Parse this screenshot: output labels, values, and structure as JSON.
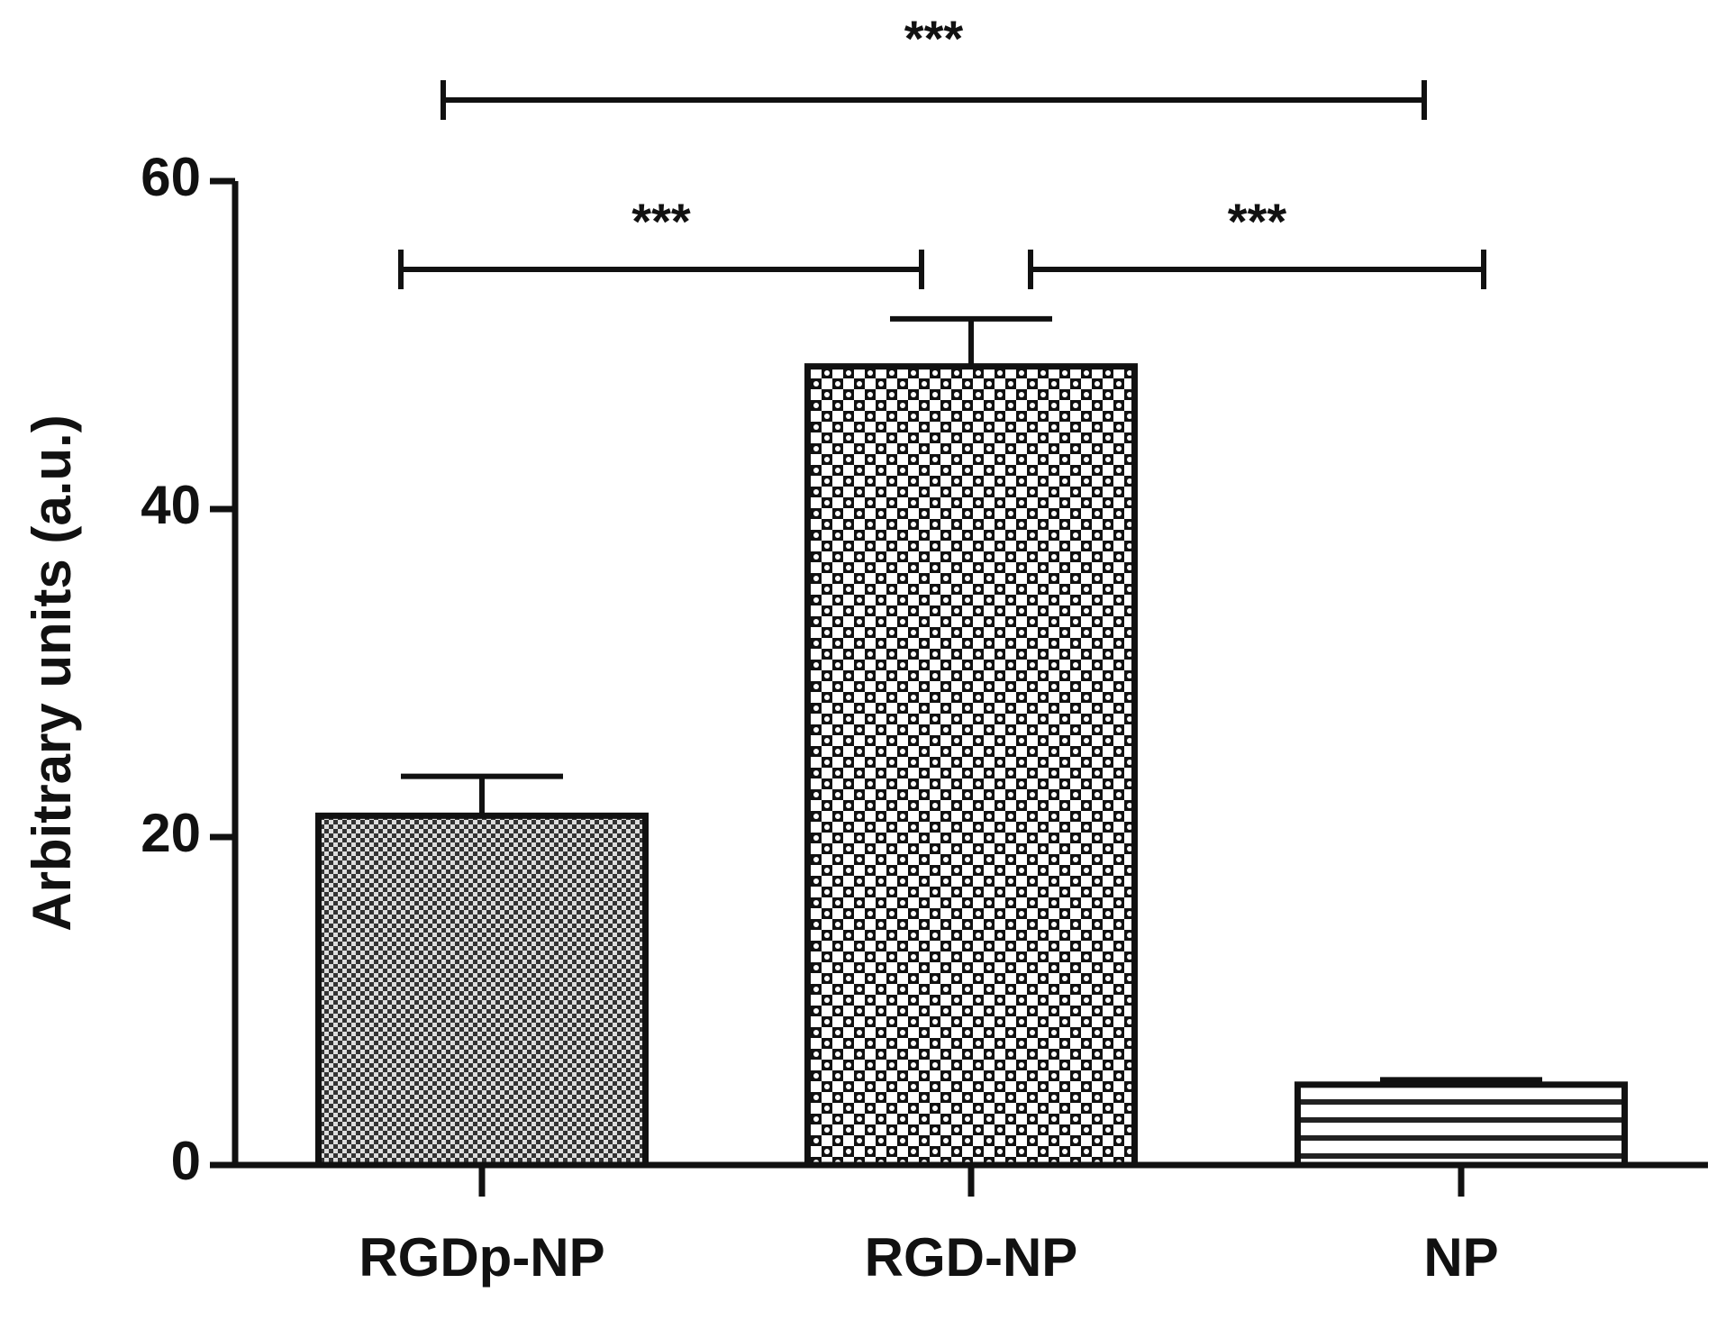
{
  "chart_data": {
    "type": "bar",
    "y_label": "Arbitrary units (a.u.)",
    "categories": [
      "RGDp-NP",
      "RGD-NP",
      "NP"
    ],
    "values": [
      21.3,
      48.7,
      4.9
    ],
    "errors": [
      2.4,
      2.9,
      0.3
    ],
    "ylim": [
      0,
      60
    ],
    "yticks": [
      0,
      20,
      40,
      60
    ],
    "comparisons": [
      {
        "from": 0,
        "to": 1,
        "label": "***"
      },
      {
        "from": 1,
        "to": 2,
        "label": "***"
      },
      {
        "from": 0,
        "to": 2,
        "label": "***"
      }
    ]
  }
}
